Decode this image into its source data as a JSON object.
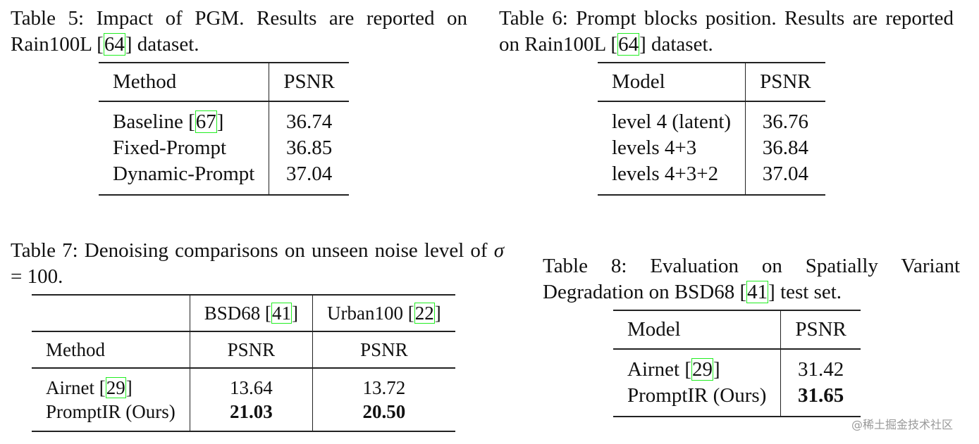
{
  "tables": [
    {
      "caption": [
        "Table 5: Impact of PGM. Results are reported on Rain100L [",
        {
          "cite": "64"
        },
        "] dataset."
      ],
      "header_rows": [
        [
          [
            "Method"
          ],
          [
            "PSNR"
          ]
        ]
      ],
      "rows": [
        [
          [
            "Baseline [",
            {
              "cite": "67"
            },
            "]"
          ],
          [
            "36.74"
          ]
        ],
        [
          [
            "Fixed-Prompt"
          ],
          [
            "36.85"
          ]
        ],
        [
          [
            "Dynamic-Prompt"
          ],
          [
            "37.04"
          ]
        ]
      ]
    },
    {
      "caption": [
        "Table 6: Prompt blocks position. Results are reported on Rain100L [",
        {
          "cite": "64"
        },
        "] dataset."
      ],
      "header_rows": [
        [
          [
            "Model"
          ],
          [
            "PSNR"
          ]
        ]
      ],
      "rows": [
        [
          [
            "level 4 (latent)"
          ],
          [
            "36.76"
          ]
        ],
        [
          [
            "levels 4+3"
          ],
          [
            "36.84"
          ]
        ],
        [
          [
            "levels 4+3+2"
          ],
          [
            "37.04"
          ]
        ]
      ]
    },
    {
      "caption": [
        "Table 7: Denoising comparisons on unseen noise level of ",
        {
          "italic": "σ"
        },
        " = 100."
      ],
      "header_rows": [
        [
          [],
          [
            "BSD68 [",
            {
              "cite": "41"
            },
            "]"
          ],
          [
            "Urban100 [",
            {
              "cite": "22"
            },
            "]"
          ]
        ],
        [
          [
            "Method"
          ],
          [
            "PSNR"
          ],
          [
            "PSNR"
          ]
        ]
      ],
      "rows": [
        [
          [
            "Airnet [",
            {
              "cite": "29"
            },
            "]"
          ],
          [
            "13.64"
          ],
          [
            "13.72"
          ]
        ],
        [
          [
            "PromptIR (Ours)"
          ],
          [
            {
              "bold": "21.03"
            }
          ],
          [
            {
              "bold": "20.50"
            }
          ]
        ]
      ]
    },
    {
      "caption": [
        "Table 8: Evaluation on Spatially Variant Degradation on BSD68 [",
        {
          "cite": "41"
        },
        "] test set."
      ],
      "header_rows": [
        [
          [
            "Model"
          ],
          [
            "PSNR"
          ]
        ]
      ],
      "rows": [
        [
          [
            "Airnet [",
            {
              "cite": "29"
            },
            "]"
          ],
          [
            "31.42"
          ]
        ],
        [
          [
            "PromptIR (Ours)"
          ],
          [
            {
              "bold": "31.65"
            }
          ]
        ]
      ]
    }
  ],
  "watermark": "@稀土掘金技术社区"
}
